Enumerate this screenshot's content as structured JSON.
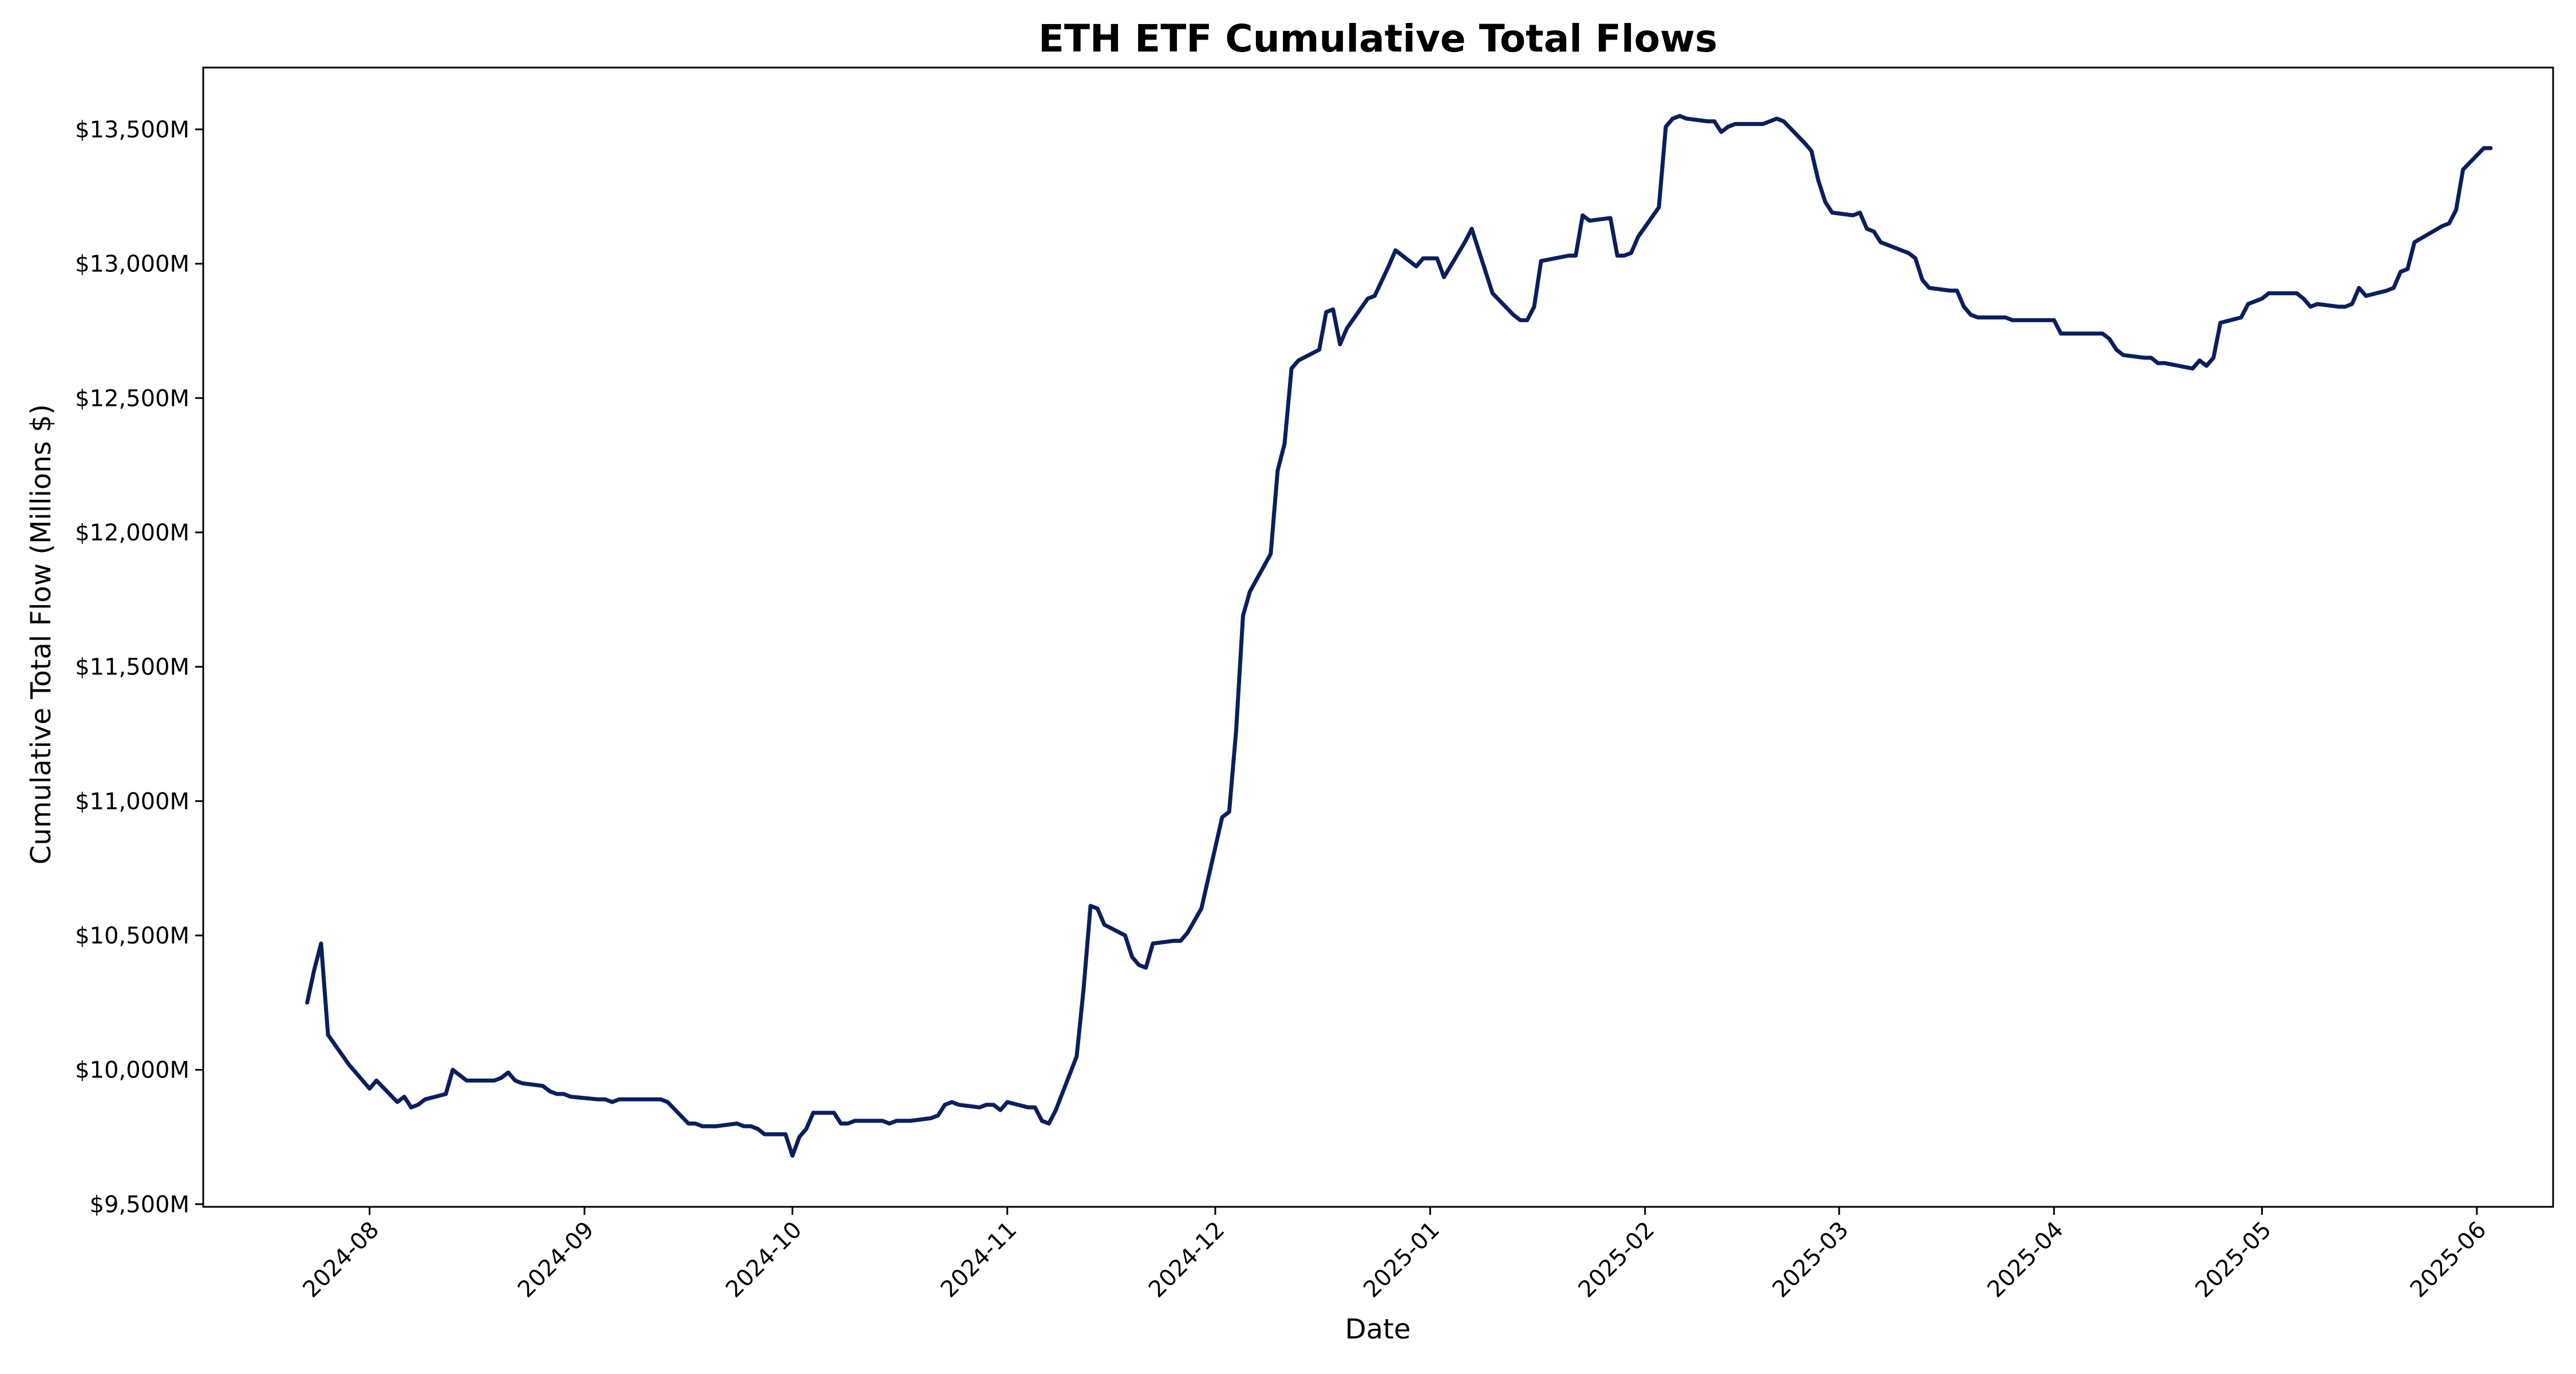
{
  "colors": {
    "line": "#0b1f5e",
    "axis": "#000000",
    "background": "#ffffff"
  },
  "chart_data": {
    "type": "line",
    "title": "ETH ETF Cumulative Total Flows",
    "xlabel": "Date",
    "ylabel": "Cumulative Total Flow (Millions $)",
    "grid": false,
    "legend": "none",
    "xlim": [
      "2024-07-08",
      "2025-06-12"
    ],
    "ylim": [
      9490,
      13730
    ],
    "x_ticks": [
      {
        "value": "2024-08-01",
        "label": "2024-08"
      },
      {
        "value": "2024-09-01",
        "label": "2024-09"
      },
      {
        "value": "2024-10-01",
        "label": "2024-10"
      },
      {
        "value": "2024-11-01",
        "label": "2024-11"
      },
      {
        "value": "2024-12-01",
        "label": "2024-12"
      },
      {
        "value": "2025-01-01",
        "label": "2025-01"
      },
      {
        "value": "2025-02-01",
        "label": "2025-02"
      },
      {
        "value": "2025-03-01",
        "label": "2025-03"
      },
      {
        "value": "2025-04-01",
        "label": "2025-04"
      },
      {
        "value": "2025-05-01",
        "label": "2025-05"
      },
      {
        "value": "2025-06-01",
        "label": "2025-06"
      }
    ],
    "y_ticks": [
      {
        "value": 9500,
        "label": "$9,500M"
      },
      {
        "value": 10000,
        "label": "$10,000M"
      },
      {
        "value": 10500,
        "label": "$10,500M"
      },
      {
        "value": 11000,
        "label": "$11,000M"
      },
      {
        "value": 11500,
        "label": "$11,500M"
      },
      {
        "value": 12000,
        "label": "$12,000M"
      },
      {
        "value": 12500,
        "label": "$12,500M"
      },
      {
        "value": 13000,
        "label": "$13,000M"
      },
      {
        "value": 13500,
        "label": "$13,500M"
      }
    ],
    "series": [
      {
        "x": [
          "2024-07-23",
          "2024-07-24",
          "2024-07-25",
          "2024-07-26",
          "2024-07-29",
          "2024-07-30",
          "2024-07-31",
          "2024-08-01",
          "2024-08-02",
          "2024-08-05",
          "2024-08-06",
          "2024-08-07",
          "2024-08-08",
          "2024-08-09",
          "2024-08-12",
          "2024-08-13",
          "2024-08-14",
          "2024-08-15",
          "2024-08-16",
          "2024-08-19",
          "2024-08-20",
          "2024-08-21",
          "2024-08-22",
          "2024-08-23",
          "2024-08-26",
          "2024-08-27",
          "2024-08-28",
          "2024-08-29",
          "2024-08-30",
          "2024-09-03",
          "2024-09-04",
          "2024-09-05",
          "2024-09-06",
          "2024-09-09",
          "2024-09-10",
          "2024-09-11",
          "2024-09-12",
          "2024-09-13",
          "2024-09-16",
          "2024-09-17",
          "2024-09-18",
          "2024-09-19",
          "2024-09-20",
          "2024-09-23",
          "2024-09-24",
          "2024-09-25",
          "2024-09-26",
          "2024-09-27",
          "2024-09-30",
          "2024-10-01",
          "2024-10-02",
          "2024-10-03",
          "2024-10-04",
          "2024-10-07",
          "2024-10-08",
          "2024-10-09",
          "2024-10-10",
          "2024-10-11",
          "2024-10-14",
          "2024-10-15",
          "2024-10-16",
          "2024-10-17",
          "2024-10-18",
          "2024-10-21",
          "2024-10-22",
          "2024-10-23",
          "2024-10-24",
          "2024-10-25",
          "2024-10-28",
          "2024-10-29",
          "2024-10-30",
          "2024-10-31",
          "2024-11-01",
          "2024-11-04",
          "2024-11-05",
          "2024-11-06",
          "2024-11-07",
          "2024-11-08",
          "2024-11-11",
          "2024-11-12",
          "2024-11-13",
          "2024-11-14",
          "2024-11-15",
          "2024-11-18",
          "2024-11-19",
          "2024-11-20",
          "2024-11-21",
          "2024-11-22",
          "2024-11-25",
          "2024-11-26",
          "2024-11-27",
          "2024-11-29",
          "2024-12-02",
          "2024-12-03",
          "2024-12-04",
          "2024-12-05",
          "2024-12-06",
          "2024-12-09",
          "2024-12-10",
          "2024-12-11",
          "2024-12-12",
          "2024-12-13",
          "2024-12-16",
          "2024-12-17",
          "2024-12-18",
          "2024-12-19",
          "2024-12-20",
          "2024-12-23",
          "2024-12-24",
          "2024-12-26",
          "2024-12-27",
          "2024-12-30",
          "2024-12-31",
          "2025-01-02",
          "2025-01-03",
          "2025-01-06",
          "2025-01-07",
          "2025-01-08",
          "2025-01-10",
          "2025-01-13",
          "2025-01-14",
          "2025-01-15",
          "2025-01-16",
          "2025-01-17",
          "2025-01-21",
          "2025-01-22",
          "2025-01-23",
          "2025-01-24",
          "2025-01-27",
          "2025-01-28",
          "2025-01-29",
          "2025-01-30",
          "2025-01-31",
          "2025-02-03",
          "2025-02-04",
          "2025-02-05",
          "2025-02-06",
          "2025-02-07",
          "2025-02-10",
          "2025-02-11",
          "2025-02-12",
          "2025-02-13",
          "2025-02-14",
          "2025-02-18",
          "2025-02-19",
          "2025-02-20",
          "2025-02-21",
          "2025-02-24",
          "2025-02-25",
          "2025-02-26",
          "2025-02-27",
          "2025-02-28",
          "2025-03-03",
          "2025-03-04",
          "2025-03-05",
          "2025-03-06",
          "2025-03-07",
          "2025-03-10",
          "2025-03-11",
          "2025-03-12",
          "2025-03-13",
          "2025-03-14",
          "2025-03-17",
          "2025-03-18",
          "2025-03-19",
          "2025-03-20",
          "2025-03-21",
          "2025-03-24",
          "2025-03-25",
          "2025-03-26",
          "2025-03-27",
          "2025-03-28",
          "2025-03-31",
          "2025-04-01",
          "2025-04-02",
          "2025-04-03",
          "2025-04-04",
          "2025-04-07",
          "2025-04-08",
          "2025-04-09",
          "2025-04-10",
          "2025-04-11",
          "2025-04-14",
          "2025-04-15",
          "2025-04-16",
          "2025-04-17",
          "2025-04-21",
          "2025-04-22",
          "2025-04-23",
          "2025-04-24",
          "2025-04-25",
          "2025-04-28",
          "2025-04-29",
          "2025-04-30",
          "2025-05-01",
          "2025-05-02",
          "2025-05-05",
          "2025-05-06",
          "2025-05-07",
          "2025-05-08",
          "2025-05-09",
          "2025-05-12",
          "2025-05-13",
          "2025-05-14",
          "2025-05-15",
          "2025-05-16",
          "2025-05-19",
          "2025-05-20",
          "2025-05-21",
          "2025-05-22",
          "2025-05-23",
          "2025-05-27",
          "2025-05-28",
          "2025-05-29",
          "2025-05-30",
          "2025-06-02",
          "2025-06-03"
        ],
        "y": [
          10250,
          10370,
          10470,
          10130,
          10020,
          9990,
          9960,
          9930,
          9960,
          9880,
          9900,
          9860,
          9870,
          9890,
          9910,
          10000,
          9980,
          9960,
          9960,
          9960,
          9970,
          9990,
          9960,
          9950,
          9940,
          9920,
          9910,
          9910,
          9900,
          9890,
          9890,
          9880,
          9890,
          9890,
          9890,
          9890,
          9890,
          9880,
          9800,
          9800,
          9790,
          9790,
          9790,
          9800,
          9790,
          9790,
          9780,
          9760,
          9760,
          9680,
          9750,
          9780,
          9840,
          9840,
          9800,
          9800,
          9810,
          9810,
          9810,
          9800,
          9810,
          9810,
          9810,
          9820,
          9830,
          9870,
          9880,
          9870,
          9860,
          9870,
          9870,
          9850,
          9880,
          9860,
          9860,
          9810,
          9800,
          9850,
          10050,
          10300,
          10610,
          10600,
          10540,
          10500,
          10420,
          10390,
          10380,
          10470,
          10480,
          10480,
          10510,
          10600,
          10940,
          10960,
          11260,
          11690,
          11780,
          11920,
          12230,
          12330,
          12610,
          12640,
          12680,
          12820,
          12830,
          12700,
          12760,
          12870,
          12880,
          12990,
          13050,
          12990,
          13020,
          13020,
          12950,
          13080,
          13130,
          13050,
          12890,
          12810,
          12790,
          12790,
          12840,
          13010,
          13030,
          13030,
          13180,
          13160,
          13170,
          13030,
          13030,
          13040,
          13100,
          13210,
          13510,
          13540,
          13550,
          13540,
          13530,
          13530,
          13490,
          13510,
          13520,
          13520,
          13530,
          13540,
          13530,
          13450,
          13420,
          13310,
          13230,
          13190,
          13180,
          13190,
          13130,
          13120,
          13080,
          13050,
          13040,
          13020,
          12940,
          12910,
          12900,
          12900,
          12840,
          12810,
          12800,
          12800,
          12800,
          12790,
          12790,
          12790,
          12790,
          12790,
          12740,
          12740,
          12740,
          12740,
          12740,
          12720,
          12680,
          12660,
          12650,
          12650,
          12630,
          12630,
          12610,
          12640,
          12620,
          12650,
          12780,
          12800,
          12850,
          12860,
          12870,
          12890,
          12890,
          12890,
          12870,
          12840,
          12850,
          12840,
          12840,
          12850,
          12910,
          12880,
          12900,
          12910,
          12970,
          12980,
          13080,
          13140,
          13150,
          13200,
          13350,
          13430,
          13430
        ]
      }
    ]
  }
}
